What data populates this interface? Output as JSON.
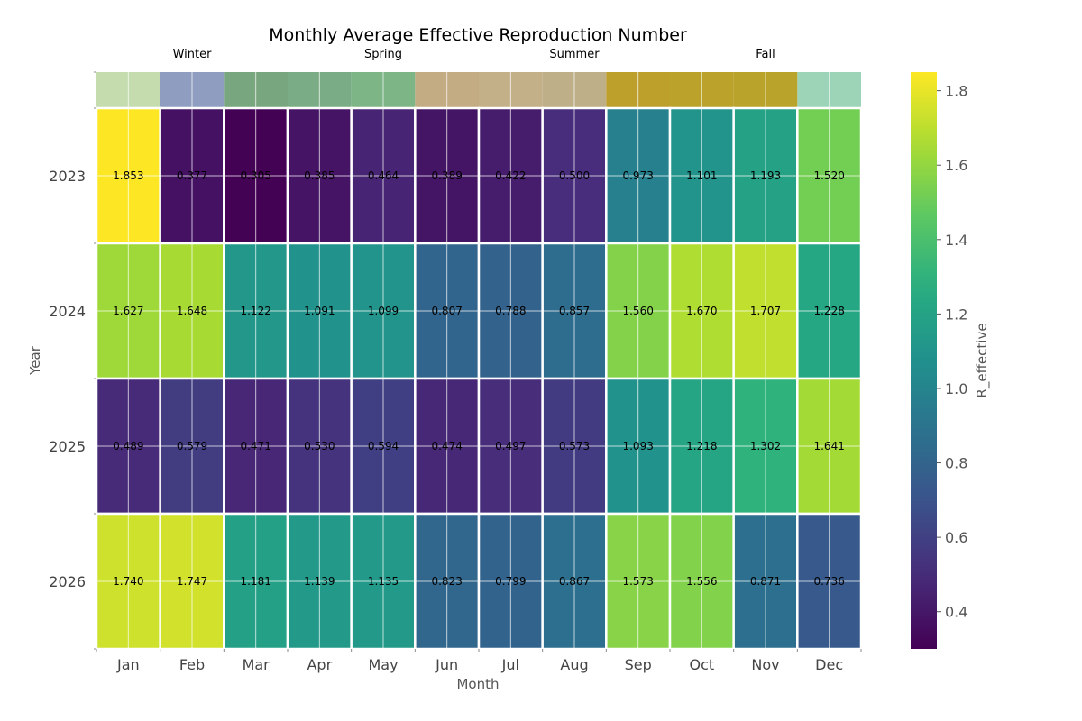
{
  "chart_data": {
    "type": "heatmap",
    "title": "Monthly Average Effective Reproduction Number",
    "xlabel": "Month",
    "ylabel": "Year",
    "colorbar_label": "R_effective",
    "colormap": "viridis",
    "vmin": 0.3,
    "vmax": 1.85,
    "colorbar_ticks": [
      "0.4",
      "0.6",
      "0.8",
      "1.0",
      "1.2",
      "1.4",
      "1.6",
      "1.8"
    ],
    "months": [
      "Jan",
      "Feb",
      "Mar",
      "Apr",
      "May",
      "Jun",
      "Jul",
      "Aug",
      "Sep",
      "Oct",
      "Nov",
      "Dec"
    ],
    "years": [
      "2023",
      "2024",
      "2025",
      "2026"
    ],
    "values": [
      [
        1.853,
        0.377,
        0.305,
        0.385,
        0.464,
        0.389,
        0.422,
        0.5,
        0.973,
        1.101,
        1.193,
        1.52
      ],
      [
        1.627,
        1.648,
        1.122,
        1.091,
        1.099,
        0.807,
        0.788,
        0.857,
        1.56,
        1.67,
        1.707,
        1.228
      ],
      [
        0.489,
        0.579,
        0.471,
        0.53,
        0.594,
        0.474,
        0.497,
        0.573,
        1.093,
        1.218,
        1.302,
        1.641
      ],
      [
        1.74,
        1.747,
        1.181,
        1.139,
        1.135,
        0.823,
        0.799,
        0.867,
        1.573,
        1.556,
        0.871,
        0.736
      ]
    ],
    "labels": [
      [
        "1.853",
        "0.377",
        "0.305",
        "0.385",
        "0.464",
        "0.389",
        "0.422",
        "0.500",
        "0.973",
        "1.101",
        "1.193",
        "1.520"
      ],
      [
        "1.627",
        "1.648",
        "1.122",
        "1.091",
        "1.099",
        "0.807",
        "0.788",
        "0.857",
        "1.560",
        "1.670",
        "1.707",
        "1.228"
      ],
      [
        "0.489",
        "0.579",
        "0.471",
        "0.530",
        "0.594",
        "0.474",
        "0.497",
        "0.573",
        "1.093",
        "1.218",
        "1.302",
        "1.641"
      ],
      [
        "1.740",
        "1.747",
        "1.181",
        "1.139",
        "1.135",
        "0.823",
        "0.799",
        "0.867",
        "1.573",
        "1.556",
        "0.871",
        "0.736"
      ]
    ],
    "season_labels": [
      {
        "text": "Winter",
        "month_index": 1
      },
      {
        "text": "Spring",
        "month_index": 4
      },
      {
        "text": "Summer",
        "month_index": 7
      },
      {
        "text": "Fall",
        "month_index": 10
      }
    ],
    "season_band_colors": [
      "#c4dcae",
      "#8f9dc0",
      "#78a67e",
      "#7aad86",
      "#7db586",
      "#c3ab84",
      "#c3af88",
      "#beaf88",
      "#bd9f2b",
      "#bba22a",
      "#baa32b",
      "#9dd4b7"
    ],
    "grid": true
  }
}
